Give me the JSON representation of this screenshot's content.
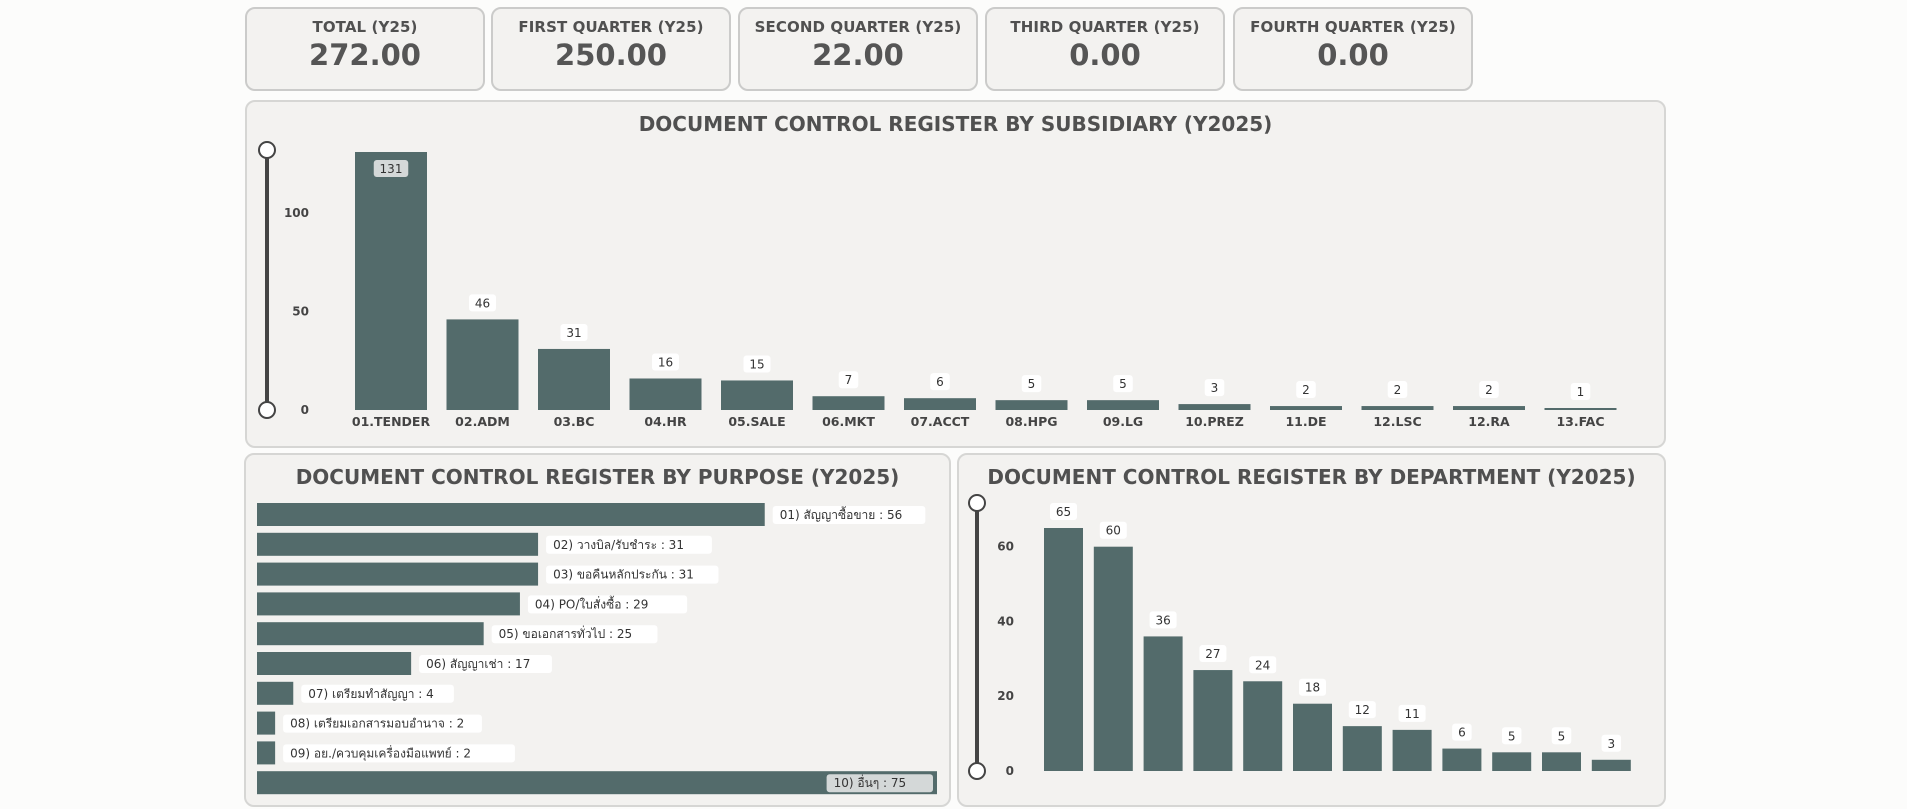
{
  "kpis": [
    {
      "label": "TOTAL (Y25)",
      "value": "272.00"
    },
    {
      "label": "FIRST QUARTER (Y25)",
      "value": "250.00"
    },
    {
      "label": "SECOND QUARTER (Y25)",
      "value": "22.00"
    },
    {
      "label": "THIRD QUARTER (Y25)",
      "value": "0.00"
    },
    {
      "label": "FOURTH QUARTER (Y25)",
      "value": "0.00"
    }
  ],
  "chart_data": [
    {
      "type": "bar",
      "title": "DOCUMENT CONTROL REGISTER BY SUBSIDIARY (Y2025)",
      "categories": [
        "01.TENDER",
        "02.ADM",
        "03.BC",
        "04.HR",
        "05.SALE",
        "06.MKT",
        "07.ACCT",
        "08.HPG",
        "09.LG",
        "10.PREZ",
        "11.DE",
        "12.LSC",
        "12.RA",
        "13.FAC"
      ],
      "values": [
        131,
        46,
        31,
        16,
        15,
        7,
        6,
        5,
        5,
        3,
        2,
        2,
        2,
        1
      ],
      "yticks": [
        0,
        50,
        100
      ],
      "ylim": [
        0,
        131
      ]
    },
    {
      "type": "bar",
      "orientation": "horizontal",
      "title": "DOCUMENT CONTROL REGISTER BY PURPOSE (Y2025)",
      "categories": [
        "01) สัญญาซื้อขาย",
        "02) วางบิล/รับชำระ",
        "03) ขอคืนหลักประกัน",
        "04) PO/ใบสั่งซื้อ",
        "05) ขอเอกสารทั่วไป",
        "06) สัญญาเช่า",
        "07) เตรียมทำสัญญา",
        "08) เตรียมเอกสารมอบอำนาจ",
        "09) อย./ควบคุมเครื่องมือแพทย์",
        "10) อื่นๆ"
      ],
      "values": [
        56,
        31,
        31,
        29,
        25,
        17,
        4,
        2,
        2,
        75
      ],
      "xlim": [
        0,
        75
      ]
    },
    {
      "type": "bar",
      "title": "DOCUMENT CONTROL REGISTER BY DEPARTMENT (Y2025)",
      "values": [
        65,
        60,
        36,
        27,
        24,
        18,
        12,
        11,
        6,
        5,
        5,
        3
      ],
      "yticks": [
        0,
        20,
        40,
        60
      ],
      "ylim": [
        0,
        65
      ]
    }
  ]
}
